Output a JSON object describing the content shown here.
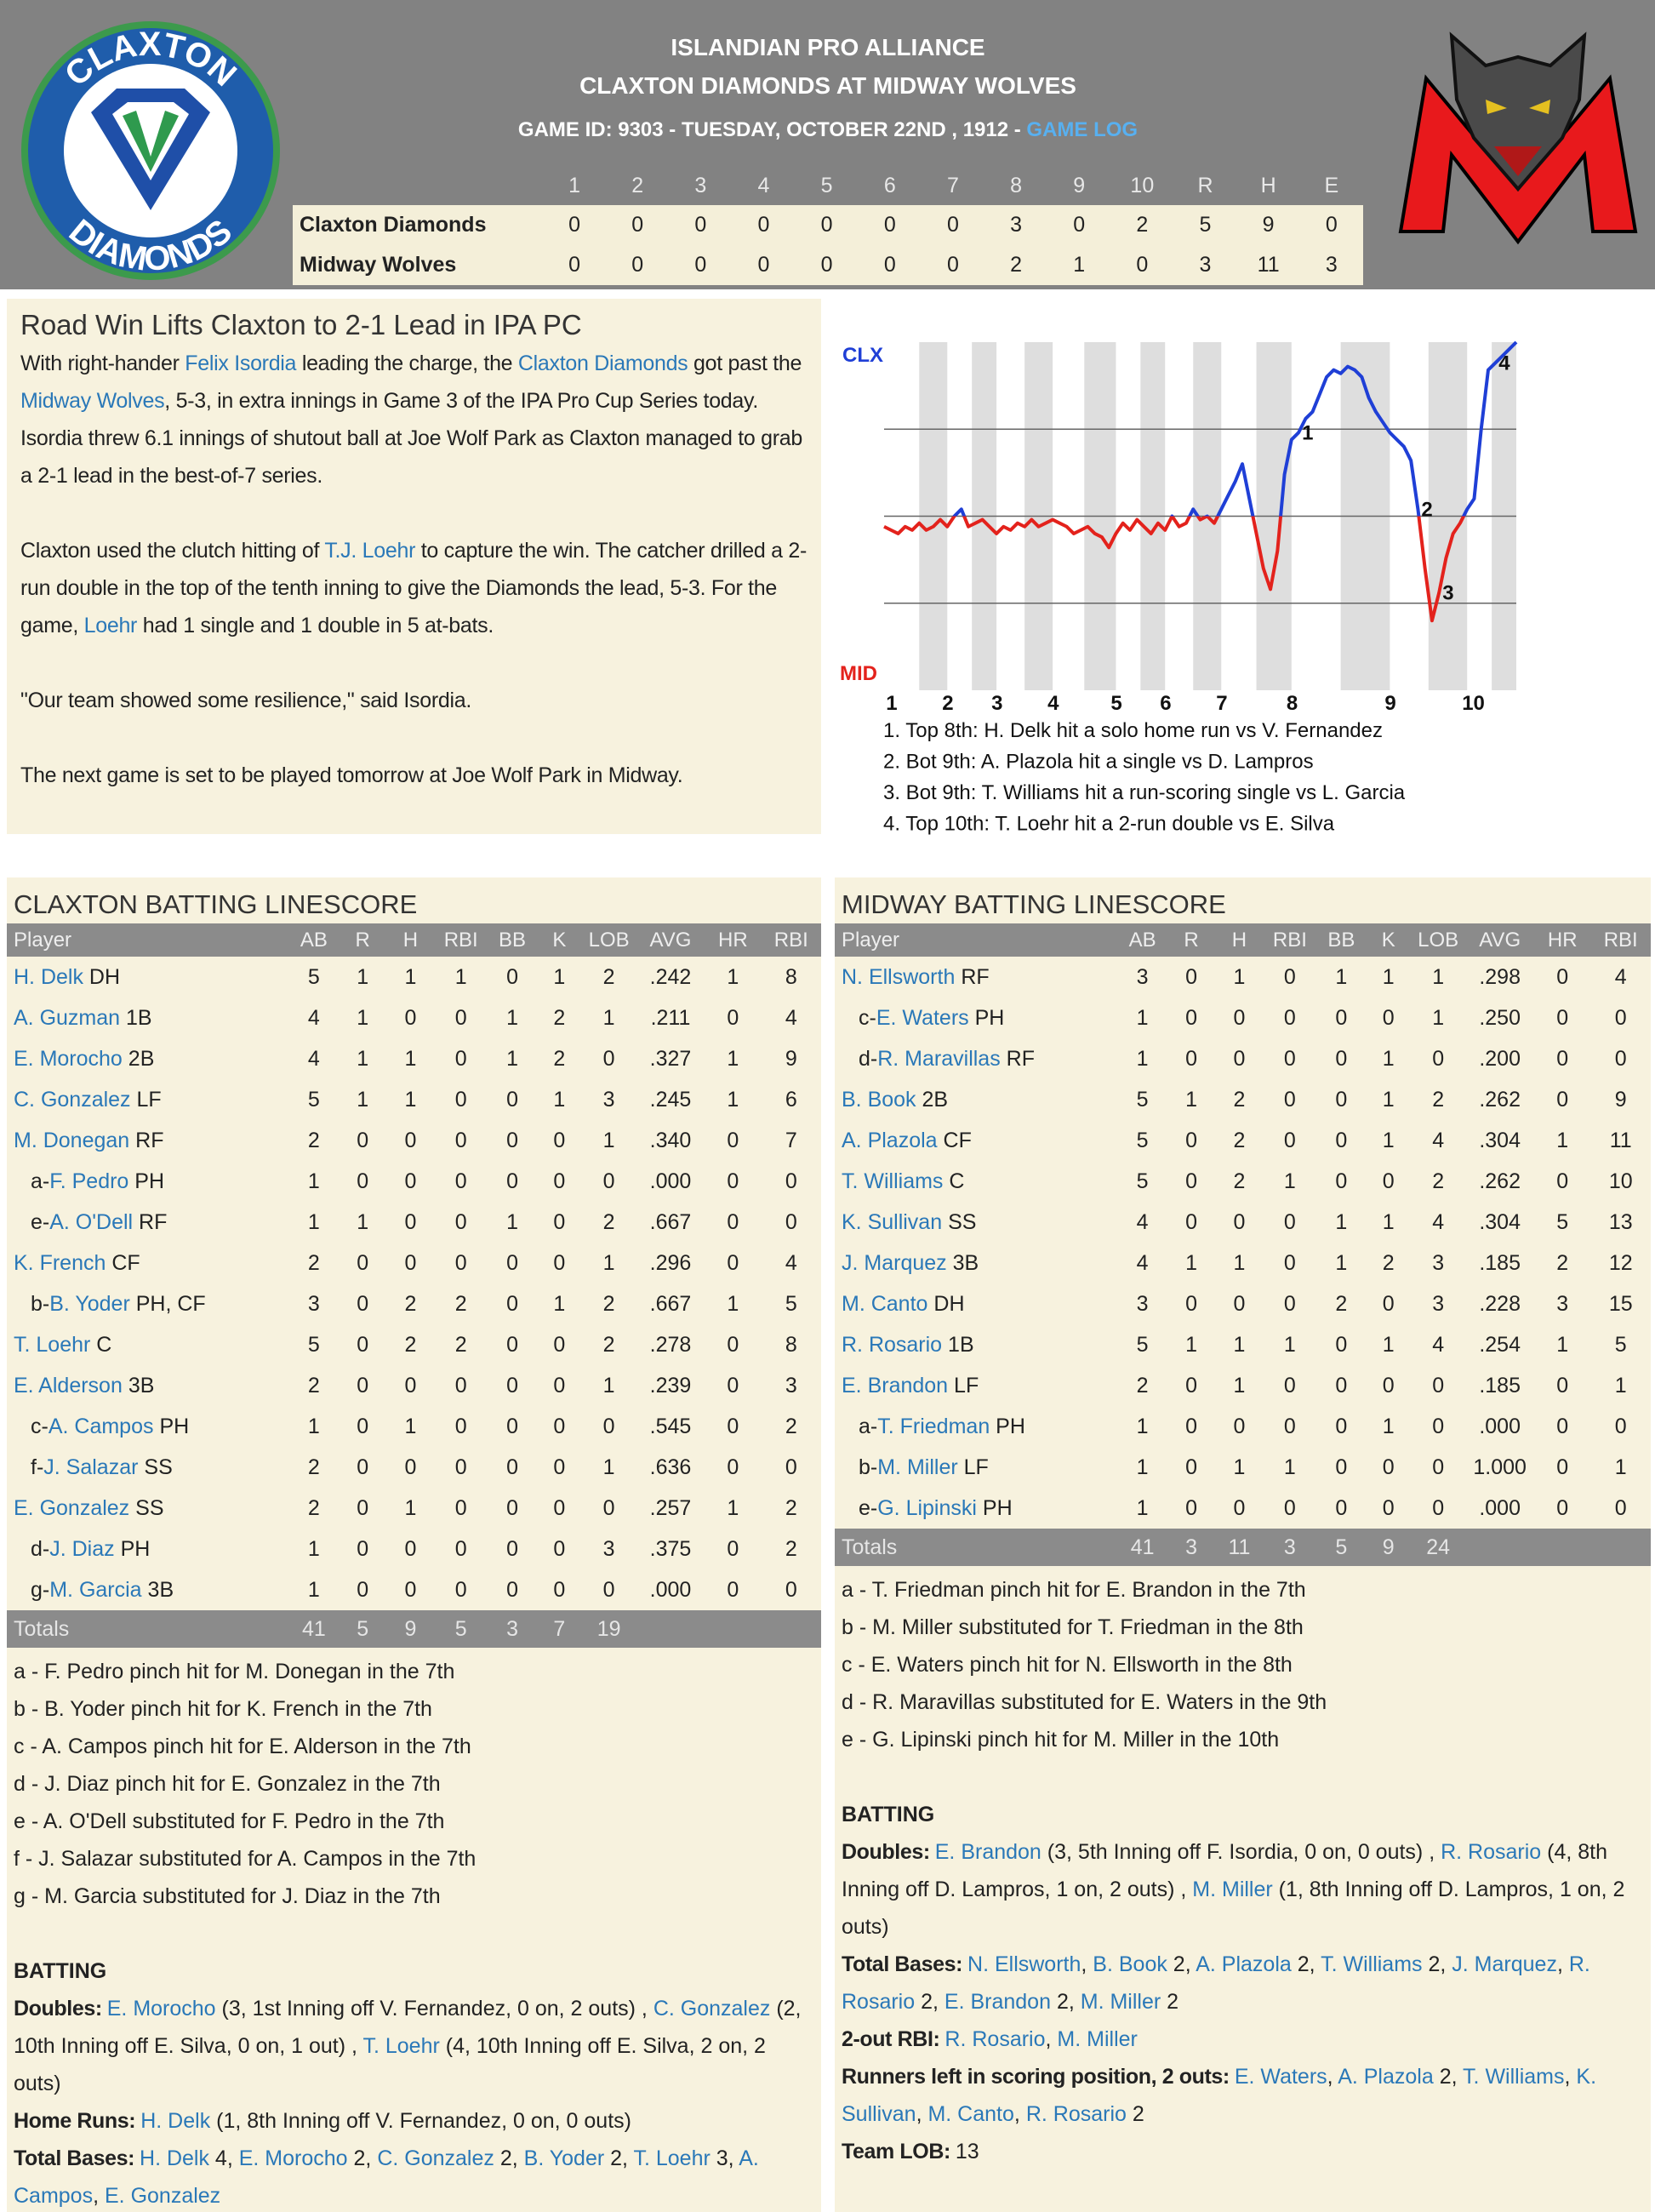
{
  "header": {
    "logo_top": "CLAXTON",
    "logo_bottom": "DIAMONDS",
    "league": "ISLANDIAN PRO ALLIANCE",
    "matchup": "CLAXTON DIAMONDS AT MIDWAY WOLVES",
    "game_info": "GAME ID: 9303 - TUESDAY, OCTOBER 22ND , 1912 - ",
    "game_log": "GAME LOG"
  },
  "linescore": {
    "columns": [
      "1",
      "2",
      "3",
      "4",
      "5",
      "6",
      "7",
      "8",
      "9",
      "10",
      "R",
      "H",
      "E"
    ],
    "rows": [
      {
        "team": "Claxton Diamonds",
        "values": [
          0,
          0,
          0,
          0,
          0,
          0,
          0,
          3,
          0,
          2,
          5,
          9,
          0
        ]
      },
      {
        "team": "Midway Wolves",
        "values": [
          0,
          0,
          0,
          0,
          0,
          0,
          0,
          2,
          1,
          0,
          3,
          11,
          3
        ]
      }
    ]
  },
  "story": {
    "headline": "Road Win Lifts Claxton to 2-1 Lead in IPA PC",
    "paragraphs": [
      [
        "With right-hander ",
        {
          "link": "Felix Isordia"
        },
        " leading the charge, the ",
        {
          "link": "Claxton Diamonds"
        },
        " got past the ",
        {
          "link": "Midway Wolves"
        },
        ", 5-3, in extra innings in Game 3 of the IPA Pro Cup Series today. Isordia threw 6.1 innings of shutout ball at Joe Wolf Park as Claxton managed to grab a 2-1 lead in the best-of-7 series."
      ],
      [
        "Claxton used the clutch hitting of ",
        {
          "link": "T.J. Loehr"
        },
        " to capture the win. The catcher drilled a 2-run double in the top of the tenth inning to give the Diamonds the lead, 5-3. For the game, ",
        {
          "link": "Loehr"
        },
        " had 1 single and 1 double in 5 at-bats."
      ],
      [
        "\"Our team showed some resilience,\" said Isordia."
      ],
      [
        "The next game is set to be played tomorrow at Joe Wolf Park in Midway."
      ]
    ]
  },
  "chart_data": {
    "type": "line",
    "top_label": "CLX",
    "bottom_label": "MID",
    "values": [
      47,
      46,
      45,
      47,
      46,
      48,
      46,
      47,
      49,
      47,
      50,
      52,
      47,
      48,
      49,
      47,
      45,
      47,
      46,
      48,
      47,
      49,
      47,
      48,
      49,
      48,
      47,
      45,
      46,
      47,
      45,
      44,
      41,
      45,
      48,
      46,
      49,
      47,
      45,
      48,
      46,
      50,
      47,
      48,
      52,
      49,
      50,
      48,
      52,
      56,
      60,
      65,
      55,
      45,
      35,
      29,
      40,
      62,
      72,
      74,
      78,
      80,
      85,
      90,
      92,
      91,
      93,
      92,
      90,
      84,
      80,
      77,
      74,
      72,
      70,
      66,
      52,
      35,
      20,
      28,
      38,
      45,
      48,
      52,
      55,
      75,
      92,
      94,
      96,
      98,
      100
    ],
    "xlim": [
      0,
      90
    ],
    "ylim": [
      0,
      100
    ],
    "yticks": [
      25,
      50,
      75
    ],
    "grid": true,
    "xticks": [
      {
        "value": 1,
        "label": "1"
      },
      {
        "value": 9,
        "label": "2"
      },
      {
        "value": 16,
        "label": "3"
      },
      {
        "value": 24,
        "label": "4"
      },
      {
        "value": 33,
        "label": "5"
      },
      {
        "value": 40,
        "label": "6"
      },
      {
        "value": 48,
        "label": "7"
      },
      {
        "value": 58,
        "label": "8"
      },
      {
        "value": 72,
        "label": "9"
      },
      {
        "value": 83,
        "label": "10"
      }
    ],
    "colors": {
      "above": "#1f3fd6",
      "below": "#e3221c"
    },
    "markers": [
      {
        "label": "1",
        "x": 59
      },
      {
        "label": "2",
        "x": 76
      },
      {
        "label": "3",
        "x": 79
      },
      {
        "label": "4",
        "x": 87
      }
    ],
    "events": [
      "1. Top 8th: H. Delk hit a solo home run vs V. Fernandez",
      "2. Bot 9th: A. Plazola hit a single vs D. Lampros",
      "3. Bot 9th: T. Williams hit a run-scoring single vs L. Garcia",
      "4. Top 10th: T. Loehr hit a 2-run double vs E. Silva"
    ]
  },
  "claxton": {
    "title": "CLAXTON BATTING LINESCORE",
    "columns": [
      "Player",
      "AB",
      "R",
      "H",
      "RBI",
      "BB",
      "K",
      "LOB",
      "AVG",
      "HR",
      "RBI"
    ],
    "rows": [
      {
        "name": "H. Delk",
        "pos": "DH",
        "stats": [
          5,
          1,
          1,
          1,
          0,
          1,
          2,
          ".242",
          1,
          8
        ]
      },
      {
        "name": "A. Guzman",
        "pos": "1B",
        "stats": [
          4,
          1,
          0,
          0,
          1,
          2,
          1,
          ".211",
          0,
          4
        ]
      },
      {
        "name": "E. Morocho",
        "pos": "2B",
        "stats": [
          4,
          1,
          1,
          0,
          1,
          2,
          0,
          ".327",
          1,
          9
        ]
      },
      {
        "name": "C. Gonzalez",
        "pos": "LF",
        "stats": [
          5,
          1,
          1,
          0,
          0,
          1,
          3,
          ".245",
          1,
          6
        ]
      },
      {
        "name": "M. Donegan",
        "pos": "RF",
        "stats": [
          2,
          0,
          0,
          0,
          0,
          0,
          1,
          ".340",
          0,
          7
        ]
      },
      {
        "prefix": "a-",
        "name": "F. Pedro",
        "pos": "PH",
        "stats": [
          1,
          0,
          0,
          0,
          0,
          0,
          0,
          ".000",
          0,
          0
        ]
      },
      {
        "prefix": "e-",
        "name": "A. O'Dell",
        "pos": "RF",
        "stats": [
          1,
          1,
          0,
          0,
          1,
          0,
          2,
          ".667",
          0,
          0
        ]
      },
      {
        "name": "K. French",
        "pos": "CF",
        "stats": [
          2,
          0,
          0,
          0,
          0,
          0,
          1,
          ".296",
          0,
          4
        ]
      },
      {
        "prefix": "b-",
        "name": "B. Yoder",
        "pos": "PH, CF",
        "stats": [
          3,
          0,
          2,
          2,
          0,
          1,
          2,
          ".667",
          1,
          5
        ]
      },
      {
        "name": "T. Loehr",
        "pos": "C",
        "stats": [
          5,
          0,
          2,
          2,
          0,
          0,
          2,
          ".278",
          0,
          8
        ]
      },
      {
        "name": "E. Alderson",
        "pos": "3B",
        "stats": [
          2,
          0,
          0,
          0,
          0,
          0,
          1,
          ".239",
          0,
          3
        ]
      },
      {
        "prefix": "c-",
        "name": "A. Campos",
        "pos": "PH",
        "stats": [
          1,
          0,
          1,
          0,
          0,
          0,
          0,
          ".545",
          0,
          2
        ]
      },
      {
        "prefix": "f-",
        "name": "J. Salazar",
        "pos": "SS",
        "stats": [
          2,
          0,
          0,
          0,
          0,
          0,
          1,
          ".636",
          0,
          0
        ]
      },
      {
        "name": "E. Gonzalez",
        "pos": "SS",
        "stats": [
          2,
          0,
          1,
          0,
          0,
          0,
          0,
          ".257",
          1,
          2
        ]
      },
      {
        "prefix": "d-",
        "name": "J. Diaz",
        "pos": "PH",
        "stats": [
          1,
          0,
          0,
          0,
          0,
          0,
          3,
          ".375",
          0,
          2
        ]
      },
      {
        "prefix": "g-",
        "name": "M. Garcia",
        "pos": "3B",
        "stats": [
          1,
          0,
          0,
          0,
          0,
          0,
          0,
          ".000",
          0,
          0
        ]
      }
    ],
    "totals": {
      "label": "Totals",
      "values": [
        41,
        5,
        9,
        5,
        3,
        7,
        19
      ]
    },
    "notes": [
      "a - F. Pedro pinch hit for M. Donegan in the 7th",
      "b - B. Yoder pinch hit for K. French in the 7th",
      "c - A. Campos pinch hit for E. Alderson in the 7th",
      "d - J. Diaz pinch hit for E. Gonzalez in the 7th",
      "e - A. O'Dell substituted for F. Pedro in the 7th",
      "f - J. Salazar substituted for A. Campos in the 7th",
      "g - M. Garcia substituted for J. Diaz in the 7th"
    ],
    "batting_title": "BATTING",
    "batting_lines": [
      {
        "label": "Doubles:",
        "items": [
          {
            "link": "E. Morocho"
          },
          " (3, 1st Inning off V. Fernandez, 0 on, 2 outs) , ",
          {
            "link": "C. Gonzalez"
          },
          " (2, 10th Inning off E. Silva, 0 on, 1 out) , ",
          {
            "link": "T. Loehr"
          },
          " (4, 10th Inning off E. Silva, 2 on, 2 outs)"
        ]
      },
      {
        "label": "Home Runs:",
        "items": [
          {
            "link": "H. Delk"
          },
          " (1, 8th Inning off V. Fernandez, 0 on, 0 outs)"
        ]
      },
      {
        "label": "Total Bases:",
        "items": [
          {
            "link": "H. Delk"
          },
          " 4, ",
          {
            "link": "E. Morocho"
          },
          " 2, ",
          {
            "link": "C. Gonzalez"
          },
          " 2, ",
          {
            "link": "B. Yoder"
          },
          " 2, ",
          {
            "link": "T. Loehr"
          },
          " 3, ",
          {
            "link": "A. Campos"
          },
          ", ",
          {
            "link": "E. Gonzalez"
          }
        ]
      }
    ]
  },
  "midway": {
    "title": "MIDWAY BATTING LINESCORE",
    "columns": [
      "Player",
      "AB",
      "R",
      "H",
      "RBI",
      "BB",
      "K",
      "LOB",
      "AVG",
      "HR",
      "RBI"
    ],
    "rows": [
      {
        "name": "N. Ellsworth",
        "pos": "RF",
        "stats": [
          3,
          0,
          1,
          0,
          1,
          1,
          1,
          ".298",
          0,
          4
        ]
      },
      {
        "prefix": "c-",
        "name": "E. Waters",
        "pos": "PH",
        "stats": [
          1,
          0,
          0,
          0,
          0,
          0,
          1,
          ".250",
          0,
          0
        ]
      },
      {
        "prefix": "d-",
        "name": "R. Maravillas",
        "pos": "RF",
        "stats": [
          1,
          0,
          0,
          0,
          0,
          1,
          0,
          ".200",
          0,
          0
        ]
      },
      {
        "name": "B. Book",
        "pos": "2B",
        "stats": [
          5,
          1,
          2,
          0,
          0,
          1,
          2,
          ".262",
          0,
          9
        ]
      },
      {
        "name": "A. Plazola",
        "pos": "CF",
        "stats": [
          5,
          0,
          2,
          0,
          0,
          1,
          4,
          ".304",
          1,
          11
        ]
      },
      {
        "name": "T. Williams",
        "pos": "C",
        "stats": [
          5,
          0,
          2,
          1,
          0,
          0,
          2,
          ".262",
          0,
          10
        ]
      },
      {
        "name": "K. Sullivan",
        "pos": "SS",
        "stats": [
          4,
          0,
          0,
          0,
          1,
          1,
          4,
          ".304",
          5,
          13
        ]
      },
      {
        "name": "J. Marquez",
        "pos": "3B",
        "stats": [
          4,
          1,
          1,
          0,
          1,
          2,
          3,
          ".185",
          2,
          12
        ]
      },
      {
        "name": "M. Canto",
        "pos": "DH",
        "stats": [
          3,
          0,
          0,
          0,
          2,
          0,
          3,
          ".228",
          3,
          15
        ]
      },
      {
        "name": "R. Rosario",
        "pos": "1B",
        "stats": [
          5,
          1,
          1,
          1,
          0,
          1,
          4,
          ".254",
          1,
          5
        ]
      },
      {
        "name": "E. Brandon",
        "pos": "LF",
        "stats": [
          2,
          0,
          1,
          0,
          0,
          0,
          0,
          ".185",
          0,
          1
        ]
      },
      {
        "prefix": "a-",
        "name": "T. Friedman",
        "pos": "PH",
        "stats": [
          1,
          0,
          0,
          0,
          0,
          1,
          0,
          ".000",
          0,
          0
        ]
      },
      {
        "prefix": "b-",
        "name": "M. Miller",
        "pos": "LF",
        "stats": [
          1,
          0,
          1,
          1,
          0,
          0,
          0,
          "1.000",
          0,
          1
        ]
      },
      {
        "prefix": "e-",
        "name": "G. Lipinski",
        "pos": "PH",
        "stats": [
          1,
          0,
          0,
          0,
          0,
          0,
          0,
          ".000",
          0,
          0
        ]
      }
    ],
    "totals": {
      "label": "Totals",
      "values": [
        41,
        3,
        11,
        3,
        5,
        9,
        24
      ]
    },
    "notes": [
      "a - T. Friedman pinch hit for E. Brandon in the 7th",
      "b - M. Miller substituted for T. Friedman in the 8th",
      "c - E. Waters pinch hit for N. Ellsworth in the 8th",
      "d - R. Maravillas substituted for E. Waters in the 9th",
      "e - G. Lipinski pinch hit for M. Miller in the 10th"
    ],
    "batting_title": "BATTING",
    "batting_lines": [
      {
        "label": "Doubles:",
        "items": [
          {
            "link": "E. Brandon"
          },
          " (3, 5th Inning off F. Isordia, 0 on, 0 outs) , ",
          {
            "link": "R. Rosario"
          },
          " (4, 8th Inning off D. Lampros, 1 on, 2 outs) , ",
          {
            "link": "M. Miller"
          },
          " (1, 8th Inning off D. Lampros, 1 on, 2 outs)"
        ]
      },
      {
        "label": "Total Bases:",
        "items": [
          {
            "link": "N. Ellsworth"
          },
          ", ",
          {
            "link": "B. Book"
          },
          " 2, ",
          {
            "link": "A. Plazola"
          },
          " 2, ",
          {
            "link": "T. Williams"
          },
          " 2, ",
          {
            "link": "J. Marquez"
          },
          ", ",
          {
            "link": "R. Rosario"
          },
          " 2, ",
          {
            "link": "E. Brandon"
          },
          " 2, ",
          {
            "link": "M. Miller"
          },
          " 2"
        ]
      },
      {
        "label": "2-out RBI:",
        "items": [
          {
            "link": "R. Rosario"
          },
          ", ",
          {
            "link": "M. Miller"
          }
        ]
      },
      {
        "label": "Runners left in scoring position, 2 outs:",
        "items": [
          {
            "link": "E. Waters"
          },
          ", ",
          {
            "link": "A. Plazola"
          },
          " 2, ",
          {
            "link": "T. Williams"
          },
          ", ",
          {
            "link": "K. Sullivan"
          },
          ", ",
          {
            "link": "M. Canto"
          },
          ", ",
          {
            "link": "R. Rosario"
          },
          " 2"
        ]
      },
      {
        "label": "Team LOB:",
        "items": [
          "13"
        ]
      }
    ]
  }
}
